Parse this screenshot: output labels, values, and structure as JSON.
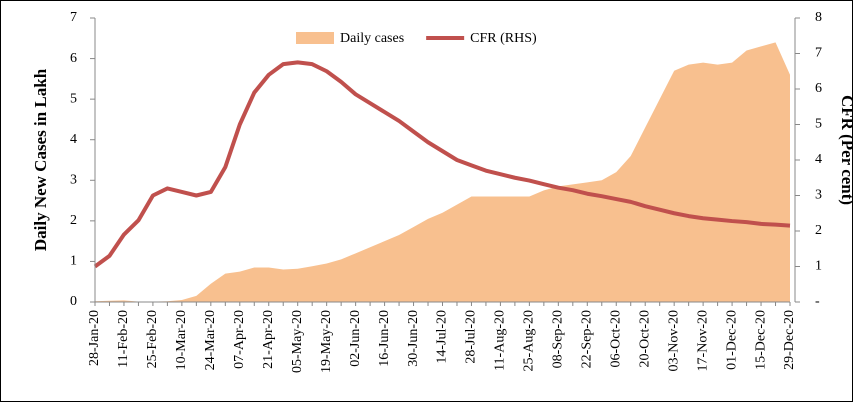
{
  "chart_data": {
    "type": "area-line",
    "y_label": "Daily New Cases in Lakh",
    "y2_label": "CFR (Per cent)",
    "categories": [
      "28-Jan-20",
      null,
      "11-Feb-20",
      null,
      "25-Feb-20",
      null,
      "10-Mar-20",
      null,
      "24-Mar-20",
      null,
      "07-Apr-20",
      null,
      "21-Apr-20",
      null,
      "05-May-20",
      null,
      "19-May-20",
      null,
      "02-Jun-20",
      null,
      "16-Jun-20",
      null,
      "30-Jun-20",
      null,
      "14-Jul-20",
      null,
      "28-Jul-20",
      null,
      "11-Aug-20",
      null,
      "25-Aug-20",
      null,
      "08-Sep-20",
      null,
      "22-Sep-20",
      null,
      "06-Oct-20",
      null,
      "20-Oct-20",
      null,
      "03-Nov-20",
      null,
      "17-Nov-20",
      null,
      "01-Dec-20",
      null,
      "15-Dec-20",
      null,
      "29-Dec-20"
    ],
    "series": [
      {
        "name": "Daily cases",
        "kind": "area",
        "color": "#f8c08f",
        "values": [
          0.02,
          0.03,
          0.04,
          0.01,
          0.01,
          0.02,
          0.05,
          0.15,
          0.45,
          0.7,
          0.75,
          0.85,
          0.85,
          0.8,
          0.82,
          0.88,
          0.95,
          1.05,
          1.2,
          1.35,
          1.5,
          1.65,
          1.85,
          2.05,
          2.2,
          2.4,
          2.6,
          2.6,
          2.6,
          2.6,
          2.6,
          2.75,
          2.85,
          2.9,
          2.95,
          3.0,
          3.2,
          3.6,
          4.3,
          5.0,
          5.7,
          5.85,
          5.9,
          5.85,
          5.9,
          6.2,
          6.3,
          6.4,
          5.6
        ]
      },
      {
        "name": "CFR (RHS)",
        "kind": "line",
        "axis": "y2",
        "color": "#c0504d",
        "values": [
          1.0,
          1.3,
          1.9,
          2.3,
          3.0,
          3.2,
          3.1,
          3.0,
          3.1,
          3.8,
          5.0,
          5.9,
          6.4,
          6.7,
          6.75,
          6.7,
          6.5,
          6.2,
          5.85,
          5.6,
          5.35,
          5.1,
          4.8,
          4.5,
          4.25,
          4.0,
          3.85,
          3.7,
          3.6,
          3.5,
          3.42,
          3.32,
          3.22,
          3.15,
          3.05,
          2.98,
          2.9,
          2.82,
          2.7,
          2.6,
          2.5,
          2.42,
          2.36,
          2.32,
          2.28,
          2.25,
          2.2,
          2.18,
          2.15
        ]
      }
    ],
    "ylim": [
      0,
      7
    ],
    "yticks": [
      0,
      1,
      2,
      3,
      4,
      5,
      6,
      7
    ],
    "y2lim": [
      0,
      8
    ],
    "y2ticks": [
      {
        "value": 0,
        "label": "-"
      },
      1,
      2,
      3,
      4,
      5,
      6,
      7,
      8
    ],
    "legend": "top"
  }
}
